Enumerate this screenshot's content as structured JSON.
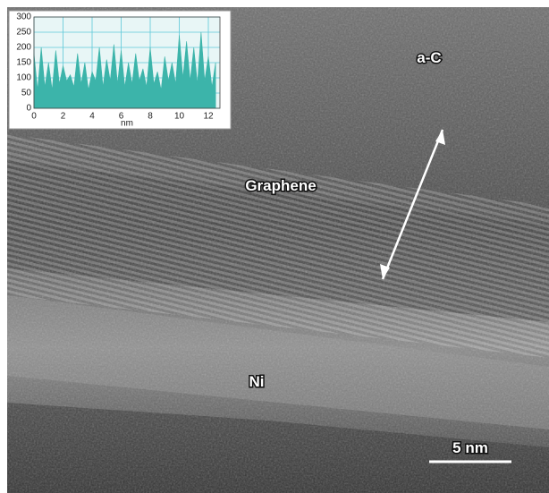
{
  "labels": {
    "amorphous": "a-C",
    "graphene": "Graphene",
    "nickel": "Ni"
  },
  "scale_bar": {
    "label": "5 nm"
  },
  "chart_data": {
    "type": "area",
    "x": [
      0,
      0.25,
      0.5,
      0.75,
      1,
      1.25,
      1.5,
      1.75,
      2,
      2.25,
      2.5,
      2.75,
      3,
      3.25,
      3.5,
      3.75,
      4,
      4.25,
      4.5,
      4.75,
      5,
      5.25,
      5.5,
      5.75,
      6,
      6.25,
      6.5,
      6.75,
      7,
      7.25,
      7.5,
      7.75,
      8,
      8.25,
      8.5,
      8.75,
      9,
      9.25,
      9.5,
      9.75,
      10,
      10.25,
      10.5,
      10.75,
      11,
      11.25,
      11.5,
      11.75,
      12,
      12.25,
      12.5
    ],
    "values": [
      180,
      60,
      200,
      70,
      150,
      60,
      190,
      80,
      140,
      90,
      110,
      70,
      180,
      80,
      150,
      60,
      120,
      90,
      200,
      70,
      160,
      90,
      210,
      80,
      190,
      70,
      150,
      80,
      180,
      90,
      130,
      70,
      200,
      80,
      120,
      60,
      170,
      90,
      150,
      80,
      240,
      100,
      220,
      90,
      200,
      80,
      250,
      90,
      170,
      70,
      150
    ],
    "color": "#3cb4aa",
    "xlabel": "nm",
    "xlim": [
      0,
      12.8
    ],
    "ylim": [
      0,
      300
    ],
    "xticks": [
      0,
      2,
      4,
      6,
      8,
      10,
      12
    ],
    "yticks": [
      0,
      50,
      100,
      150,
      200,
      250,
      300
    ],
    "grid": true
  }
}
